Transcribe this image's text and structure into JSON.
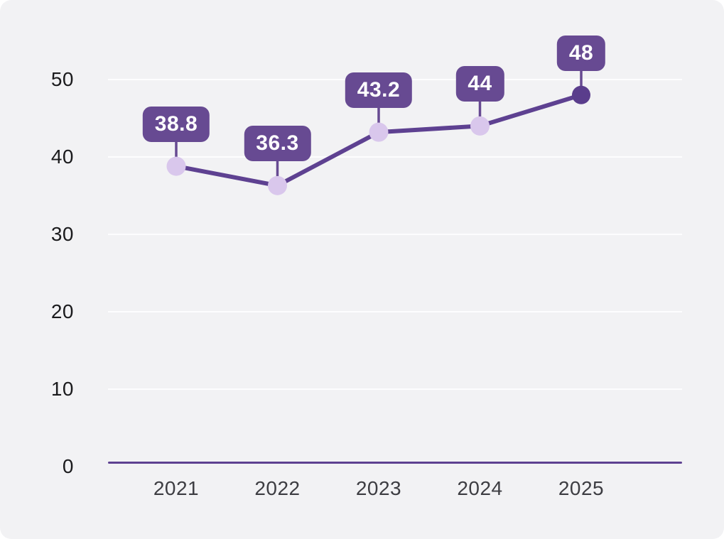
{
  "chart_data": {
    "type": "line",
    "title": "",
    "xlabel": "",
    "ylabel": "",
    "categories": [
      "2021",
      "2022",
      "2023",
      "2024",
      "2025"
    ],
    "values": [
      38.8,
      36.3,
      43.2,
      44,
      48
    ],
    "point_labels": [
      "38.8",
      "36.3",
      "43.2",
      "44",
      "48"
    ],
    "ylim": [
      0,
      50
    ],
    "yticks": [
      0,
      10,
      20,
      30,
      40,
      50
    ],
    "ytick_labels": [
      "0",
      "10",
      "20",
      "30",
      "40",
      "50"
    ],
    "grid": true,
    "legend": false,
    "last_point_emphasized": true,
    "colors": {
      "card_background": "#f2f2f4",
      "gridline": "#fdfdfe",
      "axis_line": "#5e4191",
      "line": "#5e4191",
      "stem": "#674a92",
      "badge_fill": "#674a92",
      "badge_text": "#ffffff",
      "marker_fill": "#d9c7ec",
      "marker_last_fill": "#5a3d8c",
      "ytick_color": "#1b1b1d",
      "xtick_color": "#3d3d42"
    }
  }
}
